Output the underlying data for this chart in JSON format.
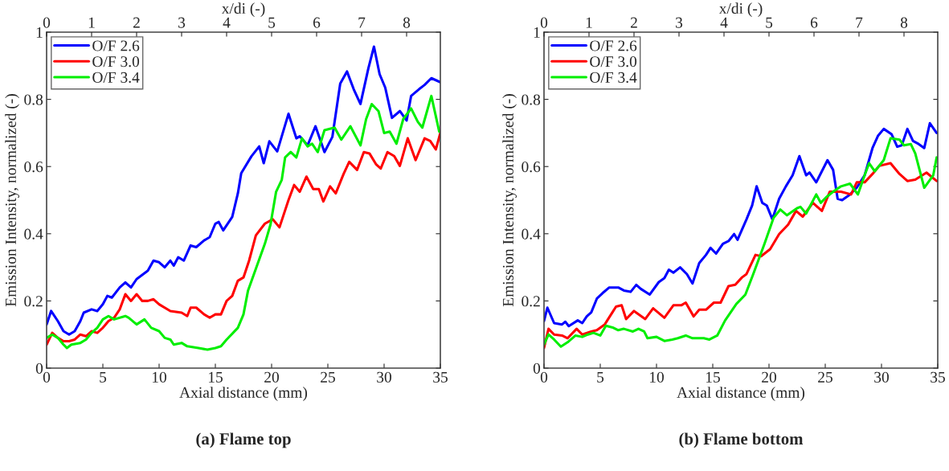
{
  "chart_data": [
    {
      "type": "line",
      "title": "(a) Flame top",
      "xlabel": "Axial distance (mm)",
      "ylabel": "Emission Intensity, normalized (-)",
      "x2label": "x/di (-)",
      "xlim": [
        0,
        35
      ],
      "xticks": [
        0,
        5,
        10,
        15,
        20,
        25,
        30,
        35
      ],
      "ylim": [
        0,
        1
      ],
      "yticks": [
        0,
        0.2,
        0.4,
        0.6,
        0.8,
        1
      ],
      "x2lim": [
        0,
        8.75
      ],
      "x2ticks": [
        0,
        1,
        2,
        3,
        4,
        5,
        6,
        7,
        8
      ],
      "grid": false,
      "legend": "top left",
      "marker": "none",
      "line_style": "solid",
      "series": [
        {
          "name": "O/F 2.6",
          "color": "#0000ff",
          "x": [
            0,
            0.4,
            1,
            1.5,
            2,
            2.5,
            3,
            3.3,
            4,
            4.5,
            5,
            5.4,
            5.8,
            6.5,
            7,
            7.5,
            8,
            9,
            9.5,
            10,
            10.5,
            11,
            11.3,
            11.7,
            12.2,
            12.8,
            13.3,
            14,
            14.5,
            15,
            15.3,
            15.7,
            16.5,
            17,
            17.3,
            18.2,
            18.9,
            19.3,
            19.8,
            20.5,
            21.5,
            22.2,
            22.5,
            23.2,
            23.9,
            24.7,
            25.4,
            26.1,
            26.7,
            27.3,
            27.9,
            28.6,
            29.1,
            29.6,
            30.1,
            30.7,
            31.4,
            32,
            32.4,
            33.1,
            33.6,
            34.2,
            35
          ],
          "values": [
            0.13,
            0.17,
            0.14,
            0.11,
            0.1,
            0.11,
            0.14,
            0.165,
            0.175,
            0.17,
            0.19,
            0.215,
            0.21,
            0.24,
            0.255,
            0.24,
            0.265,
            0.29,
            0.32,
            0.315,
            0.3,
            0.32,
            0.305,
            0.33,
            0.32,
            0.365,
            0.36,
            0.38,
            0.39,
            0.43,
            0.435,
            0.41,
            0.45,
            0.52,
            0.58,
            0.63,
            0.66,
            0.61,
            0.675,
            0.645,
            0.757,
            0.684,
            0.69,
            0.663,
            0.72,
            0.643,
            0.688,
            0.847,
            0.883,
            0.83,
            0.786,
            0.892,
            0.957,
            0.875,
            0.835,
            0.745,
            0.765,
            0.737,
            0.81,
            0.83,
            0.843,
            0.863,
            0.851
          ]
        },
        {
          "name": "O/F 3.0",
          "color": "#ff0000",
          "x": [
            0,
            0.5,
            1,
            1.5,
            2,
            2.5,
            3,
            3.5,
            4,
            4.5,
            5,
            5.5,
            6,
            6.5,
            7,
            7.5,
            8,
            8.5,
            9,
            9.5,
            10,
            11,
            12,
            12.5,
            12.8,
            13.3,
            14,
            14.5,
            15,
            15.5,
            16,
            16.5,
            17,
            17.5,
            18,
            18.6,
            19.4,
            20.1,
            20.7,
            21.5,
            22,
            22.5,
            23.1,
            23.7,
            24.2,
            24.6,
            25.2,
            25.7,
            26.4,
            26.9,
            27.6,
            28.2,
            28.7,
            29.3,
            29.7,
            30.3,
            30.9,
            31.4,
            32.1,
            32.8,
            33.6,
            34.1,
            34.6,
            35
          ],
          "values": [
            0.07,
            0.105,
            0.09,
            0.08,
            0.08,
            0.085,
            0.1,
            0.095,
            0.11,
            0.105,
            0.12,
            0.14,
            0.15,
            0.175,
            0.22,
            0.2,
            0.22,
            0.2,
            0.2,
            0.205,
            0.19,
            0.17,
            0.165,
            0.155,
            0.18,
            0.18,
            0.16,
            0.15,
            0.16,
            0.16,
            0.2,
            0.215,
            0.26,
            0.27,
            0.32,
            0.395,
            0.43,
            0.443,
            0.419,
            0.5,
            0.545,
            0.525,
            0.57,
            0.533,
            0.533,
            0.496,
            0.541,
            0.52,
            0.578,
            0.614,
            0.59,
            0.643,
            0.639,
            0.606,
            0.594,
            0.643,
            0.631,
            0.602,
            0.684,
            0.619,
            0.684,
            0.676,
            0.651,
            0.7
          ]
        },
        {
          "name": "O/F 3.4",
          "color": "#00ee00",
          "x": [
            0,
            0.5,
            1,
            1.5,
            1.8,
            2.2,
            3,
            3.5,
            4,
            4.5,
            5,
            5.5,
            6,
            7,
            7.3,
            8,
            8.7,
            9.3,
            10,
            10.5,
            11,
            11.3,
            12,
            12.5,
            13.5,
            14.3,
            15,
            15.5,
            16,
            17,
            17.5,
            17.9,
            18.7,
            19.4,
            19.9,
            20.4,
            20.9,
            21.2,
            21.7,
            22.2,
            22.7,
            23.2,
            23.6,
            24.1,
            24.7,
            25.6,
            26.2,
            27,
            27.9,
            28.4,
            28.9,
            29.5,
            30,
            30.5,
            31.1,
            31.7,
            32.4,
            33,
            33.4,
            34.2,
            34.9
          ],
          "values": [
            0.09,
            0.1,
            0.09,
            0.07,
            0.06,
            0.07,
            0.075,
            0.085,
            0.105,
            0.12,
            0.145,
            0.155,
            0.145,
            0.155,
            0.15,
            0.13,
            0.145,
            0.12,
            0.11,
            0.09,
            0.085,
            0.07,
            0.075,
            0.065,
            0.06,
            0.055,
            0.06,
            0.065,
            0.085,
            0.12,
            0.16,
            0.23,
            0.305,
            0.37,
            0.427,
            0.525,
            0.56,
            0.627,
            0.643,
            0.627,
            0.684,
            0.66,
            0.668,
            0.643,
            0.708,
            0.716,
            0.68,
            0.72,
            0.663,
            0.741,
            0.786,
            0.765,
            0.7,
            0.704,
            0.668,
            0.741,
            0.773,
            0.733,
            0.716,
            0.81,
            0.704
          ]
        }
      ]
    },
    {
      "type": "line",
      "title": "(b) Flame bottom",
      "xlabel": "Axial distance (mm)",
      "ylabel": "Emission Intensity, normalized (-)",
      "x2label": "x/di (-)",
      "xlim": [
        0,
        35
      ],
      "xticks": [
        0,
        5,
        10,
        15,
        20,
        25,
        30,
        35
      ],
      "ylim": [
        0,
        1
      ],
      "yticks": [
        0,
        0.2,
        0.4,
        0.6,
        0.8,
        1
      ],
      "x2lim": [
        0,
        8.75
      ],
      "x2ticks": [
        0,
        1,
        2,
        3,
        4,
        5,
        6,
        7,
        8
      ],
      "grid": false,
      "legend": "top left",
      "marker": "none",
      "line_style": "solid",
      "series": [
        {
          "name": "O/F 2.6",
          "color": "#0000ff",
          "x": [
            0,
            0.3,
            0.9,
            1.6,
            1.9,
            2.2,
            3,
            3.4,
            3.8,
            4.2,
            4.7,
            5.2,
            5.8,
            6.6,
            7.1,
            7.7,
            8.2,
            8.6,
            9.4,
            10.2,
            10.7,
            11.1,
            11.5,
            12.1,
            12.7,
            13.2,
            13.8,
            14.4,
            14.8,
            15.3,
            15.9,
            16.4,
            16.9,
            17.2,
            18,
            18.5,
            18.9,
            19.4,
            19.8,
            20.3,
            20.9,
            21.5,
            22.1,
            22.7,
            23.3,
            23.6,
            24.2,
            25.2,
            25.7,
            26.1,
            26.5,
            27.2,
            27.8,
            28.5,
            29.2,
            29.7,
            30.2,
            30.9,
            31.4,
            31.8,
            32.3,
            32.8,
            33.3,
            33.8,
            34.3,
            34.9
          ],
          "values": [
            0.14,
            0.18,
            0.134,
            0.13,
            0.138,
            0.125,
            0.142,
            0.134,
            0.154,
            0.166,
            0.207,
            0.223,
            0.24,
            0.24,
            0.231,
            0.227,
            0.248,
            0.236,
            0.219,
            0.256,
            0.268,
            0.293,
            0.284,
            0.3,
            0.28,
            0.252,
            0.313,
            0.337,
            0.358,
            0.341,
            0.37,
            0.378,
            0.399,
            0.382,
            0.443,
            0.484,
            0.541,
            0.492,
            0.484,
            0.443,
            0.504,
            0.541,
            0.574,
            0.631,
            0.574,
            0.582,
            0.553,
            0.619,
            0.59,
            0.504,
            0.5,
            0.517,
            0.537,
            0.574,
            0.655,
            0.692,
            0.712,
            0.696,
            0.659,
            0.663,
            0.712,
            0.676,
            0.667,
            0.655,
            0.729,
            0.7
          ]
        },
        {
          "name": "O/F 3.0",
          "color": "#ff0000",
          "x": [
            0,
            0.4,
            0.9,
            1.6,
            2.1,
            2.9,
            3.4,
            4.2,
            4.7,
            5.4,
            6.4,
            6.9,
            7.3,
            8,
            9,
            9.7,
            10.7,
            11.5,
            12.2,
            12.6,
            13.3,
            13.8,
            14.4,
            15.1,
            15.7,
            16.4,
            17,
            17.6,
            18,
            18.8,
            19.3,
            20.1,
            20.9,
            21.7,
            22.4,
            23,
            23.9,
            24.7,
            25.4,
            26.4,
            27.3,
            27.8,
            28.5,
            29.2,
            29.8,
            30.8,
            31.6,
            32.3,
            33,
            34,
            34.9
          ],
          "values": [
            0.06,
            0.117,
            0.1,
            0.097,
            0.089,
            0.117,
            0.1,
            0.109,
            0.113,
            0.13,
            0.183,
            0.187,
            0.146,
            0.17,
            0.146,
            0.178,
            0.15,
            0.187,
            0.187,
            0.195,
            0.154,
            0.174,
            0.174,
            0.195,
            0.195,
            0.244,
            0.248,
            0.27,
            0.28,
            0.337,
            0.333,
            0.354,
            0.399,
            0.427,
            0.468,
            0.451,
            0.492,
            0.468,
            0.525,
            0.525,
            0.517,
            0.553,
            0.553,
            0.578,
            0.602,
            0.61,
            0.578,
            0.557,
            0.561,
            0.582,
            0.557
          ]
        },
        {
          "name": "O/F 3.4",
          "color": "#00ee00",
          "x": [
            0,
            0.4,
            0.9,
            1.5,
            2.1,
            2.8,
            3.4,
            3.9,
            4.4,
            5,
            5.5,
            6.1,
            6.6,
            7.1,
            7.9,
            8.4,
            8.9,
            9.2,
            10,
            10.7,
            11.4,
            11.9,
            12.6,
            13.2,
            14.2,
            14.7,
            15.4,
            16.1,
            17.1,
            17.9,
            18.6,
            19.6,
            20.4,
            21,
            21.6,
            22.5,
            22.8,
            23.3,
            24.2,
            24.6,
            25.1,
            25.7,
            26.4,
            27.2,
            27.9,
            28.5,
            28.9,
            29.4,
            30.2,
            30.8,
            31.6,
            32,
            32.6,
            33,
            33.8,
            34.6,
            34.9
          ],
          "values": [
            0.07,
            0.1,
            0.085,
            0.064,
            0.077,
            0.097,
            0.093,
            0.1,
            0.105,
            0.097,
            0.126,
            0.121,
            0.113,
            0.117,
            0.109,
            0.117,
            0.109,
            0.089,
            0.093,
            0.081,
            0.085,
            0.089,
            0.097,
            0.089,
            0.089,
            0.085,
            0.097,
            0.142,
            0.191,
            0.219,
            0.28,
            0.37,
            0.447,
            0.472,
            0.455,
            0.476,
            0.48,
            0.46,
            0.517,
            0.492,
            0.509,
            0.525,
            0.541,
            0.549,
            0.517,
            0.574,
            0.61,
            0.586,
            0.619,
            0.684,
            0.68,
            0.663,
            0.667,
            0.639,
            0.537,
            0.574,
            0.627
          ]
        }
      ]
    }
  ]
}
